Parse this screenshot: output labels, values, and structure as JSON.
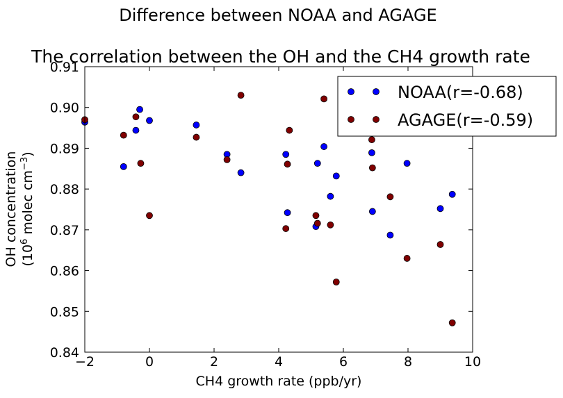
{
  "chart_data": {
    "type": "scatter",
    "suptitle": "Difference between NOAA and AGAGE",
    "title": "The correlation between the OH and the CH4 growth rate",
    "xlabel": "CH4 growth rate (ppb/yr)",
    "ylabel_line1": "OH concentration",
    "ylabel_line2": "(10^6 molec cm^-3)",
    "xlim": [
      -2,
      10
    ],
    "ylim": [
      0.84,
      0.91
    ],
    "xticks": [
      -2,
      0,
      2,
      4,
      6,
      8,
      10
    ],
    "xtick_labels": [
      "−2",
      "0",
      "2",
      "4",
      "6",
      "8",
      "10"
    ],
    "yticks": [
      0.84,
      0.85,
      0.86,
      0.87,
      0.88,
      0.89,
      0.9,
      0.91
    ],
    "ytick_labels": [
      "0.84",
      "0.85",
      "0.86",
      "0.87",
      "0.88",
      "0.89",
      "0.90",
      "0.91"
    ],
    "grid": false,
    "legend_position": "top-right",
    "series": [
      {
        "name": "NOAA(r=-0.68)",
        "color": "#0000ff",
        "points": [
          [
            -2.0,
            0.8964
          ],
          [
            -0.8,
            0.8855
          ],
          [
            -0.42,
            0.8944
          ],
          [
            -0.3,
            0.8995
          ],
          [
            0.0,
            0.8968
          ],
          [
            1.45,
            0.8957
          ],
          [
            2.4,
            0.8885
          ],
          [
            2.83,
            0.884
          ],
          [
            4.22,
            0.8885
          ],
          [
            4.27,
            0.8742
          ],
          [
            5.15,
            0.8708
          ],
          [
            5.2,
            0.8863
          ],
          [
            5.4,
            0.8904
          ],
          [
            5.6,
            0.8782
          ],
          [
            5.78,
            0.8832
          ],
          [
            6.88,
            0.8889
          ],
          [
            6.9,
            0.8745
          ],
          [
            7.45,
            0.8687
          ],
          [
            7.97,
            0.8863
          ],
          [
            9.0,
            0.8752
          ],
          [
            9.37,
            0.8787
          ]
        ]
      },
      {
        "name": "AGAGE(r=-0.59)",
        "color": "#800000",
        "points": [
          [
            -2.0,
            0.897
          ],
          [
            -0.8,
            0.8932
          ],
          [
            -0.42,
            0.8977
          ],
          [
            -0.27,
            0.8863
          ],
          [
            0.0,
            0.8735
          ],
          [
            1.45,
            0.8927
          ],
          [
            2.4,
            0.8872
          ],
          [
            2.83,
            0.903
          ],
          [
            4.22,
            0.8703
          ],
          [
            4.27,
            0.8861
          ],
          [
            4.33,
            0.8944
          ],
          [
            5.15,
            0.8735
          ],
          [
            5.2,
            0.8716
          ],
          [
            5.4,
            0.9021
          ],
          [
            5.6,
            0.8712
          ],
          [
            5.78,
            0.8572
          ],
          [
            6.88,
            0.8921
          ],
          [
            6.9,
            0.8852
          ],
          [
            7.45,
            0.8781
          ],
          [
            7.97,
            0.863
          ],
          [
            9.0,
            0.8664
          ],
          [
            9.37,
            0.8472
          ]
        ]
      }
    ]
  }
}
